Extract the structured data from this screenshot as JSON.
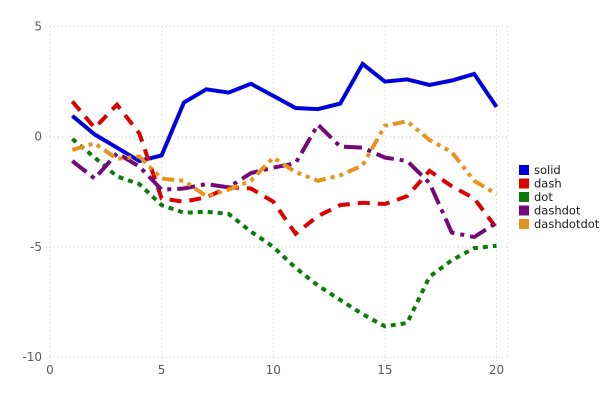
{
  "chart_data": {
    "type": "line",
    "title": "",
    "xlabel": "",
    "ylabel": "",
    "xlim": [
      0,
      20.5
    ],
    "ylim": [
      -10,
      5
    ],
    "x_ticks": [
      0,
      5,
      10,
      15,
      20
    ],
    "y_ticks": [
      5,
      0,
      -5,
      -10
    ],
    "grid": "dotted",
    "grid_color": "#ccccd8",
    "tick_label_color": "#5a5a66",
    "background_color": "#ffffff",
    "legend_position": "right",
    "x": [
      1,
      2,
      3,
      4,
      5,
      6,
      7,
      8,
      9,
      10,
      11,
      12,
      13,
      14,
      15,
      16,
      17,
      18,
      19,
      20
    ],
    "series": [
      {
        "name": "solid",
        "label": "solid",
        "color": "#0000dd",
        "line_style": "solid",
        "values": [
          0.95,
          0.1,
          -0.5,
          -1.1,
          -0.85,
          1.55,
          2.15,
          2.0,
          2.4,
          1.85,
          1.3,
          1.25,
          1.5,
          3.3,
          2.5,
          2.6,
          2.35,
          2.55,
          2.85,
          1.35
        ]
      },
      {
        "name": "dash",
        "label": "dash",
        "color": "#dd0000",
        "line_style": "dash",
        "values": [
          1.6,
          0.4,
          1.45,
          0.15,
          -2.8,
          -2.95,
          -2.75,
          -2.3,
          -2.35,
          -2.95,
          -4.4,
          -3.6,
          -3.1,
          -3.0,
          -3.05,
          -2.7,
          -1.55,
          -2.25,
          -2.8,
          -4.15
        ]
      },
      {
        "name": "dot",
        "label": "dot",
        "color": "#0a7a0a",
        "line_style": "dot",
        "values": [
          -0.1,
          -0.95,
          -1.8,
          -2.15,
          -3.1,
          -3.45,
          -3.4,
          -3.5,
          -4.3,
          -5.0,
          -5.95,
          -6.75,
          -7.4,
          -8.05,
          -8.6,
          -8.45,
          -6.35,
          -5.6,
          -5.05,
          -4.95
        ]
      },
      {
        "name": "dashdot",
        "label": "dashdot",
        "color": "#730a78",
        "line_style": "dashdot",
        "values": [
          -1.1,
          -1.9,
          -0.75,
          -1.35,
          -2.4,
          -2.35,
          -2.15,
          -2.3,
          -1.65,
          -1.4,
          -1.2,
          0.55,
          -0.45,
          -0.5,
          -0.95,
          -1.1,
          -2.1,
          -4.35,
          -4.55,
          -3.9
        ]
      },
      {
        "name": "dashdotdot",
        "label": "dashdotdot",
        "color": "#e6941e",
        "line_style": "dashdotdot",
        "values": [
          -0.6,
          -0.3,
          -1.0,
          -0.9,
          -1.9,
          -2.0,
          -2.7,
          -2.4,
          -2.0,
          -0.95,
          -1.6,
          -2.0,
          -1.75,
          -1.3,
          0.5,
          0.7,
          -0.15,
          -0.7,
          -2.0,
          -2.6
        ]
      }
    ]
  }
}
